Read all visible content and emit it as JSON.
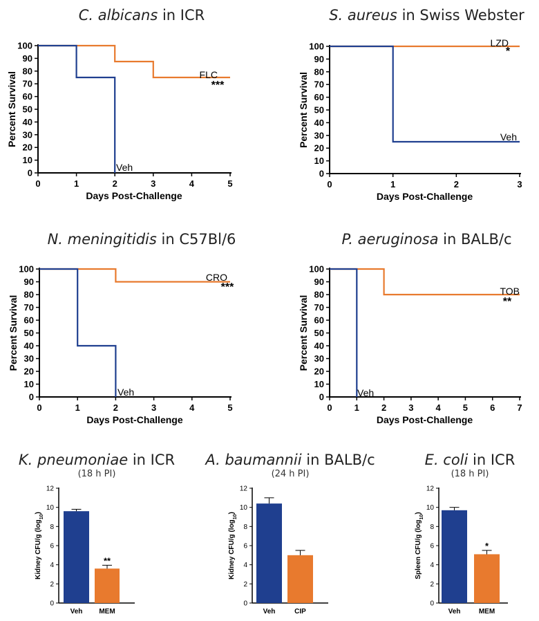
{
  "colors": {
    "veh": "#1f3f8f",
    "drug": "#e87a2e",
    "axis": "#000000"
  },
  "panels": [
    {
      "title_org": "C. albicans",
      "title_rest": "in ICR",
      "subtitle": ""
    },
    {
      "title_org": "S. aureus",
      "title_rest": "in Swiss Webster",
      "subtitle": ""
    },
    {
      "title_org": "N. meningitidis",
      "title_rest": "in C57Bl/6",
      "subtitle": ""
    },
    {
      "title_org": "P. aeruginosa",
      "title_rest": "in BALB/c",
      "subtitle": ""
    },
    {
      "title_org": "K. pneumoniae",
      "title_rest": "in ICR",
      "subtitle": "(18 h PI)"
    },
    {
      "title_org": "A. baumannii",
      "title_rest": "in BALB/c",
      "subtitle": "(24 h PI)"
    },
    {
      "title_org": "E. coli",
      "title_rest": "in ICR",
      "subtitle": "(18 h PI)"
    }
  ],
  "chart_data": [
    {
      "type": "line",
      "step": true,
      "xlabel": "Days Post-Challenge",
      "ylabel": "Percent Survival",
      "xlim": [
        0,
        5
      ],
      "ylim": [
        0,
        100
      ],
      "xticks": [
        "0",
        "1",
        "2",
        "3",
        "4",
        "5"
      ],
      "yticks": [
        "0",
        "10",
        "20",
        "30",
        "40",
        "50",
        "60",
        "70",
        "80",
        "90",
        "100"
      ],
      "series": [
        {
          "name": "Veh",
          "color_key": "veh",
          "points": [
            [
              0,
              100
            ],
            [
              1,
              100
            ],
            [
              1,
              75
            ],
            [
              2,
              75
            ],
            [
              2,
              0
            ]
          ]
        },
        {
          "name": "FLC",
          "significance": "***",
          "color_key": "drug",
          "points": [
            [
              0,
              100
            ],
            [
              2,
              100
            ],
            [
              2,
              87.5
            ],
            [
              3,
              87.5
            ],
            [
              3,
              75
            ],
            [
              5,
              75
            ]
          ]
        }
      ]
    },
    {
      "type": "line",
      "step": true,
      "xlabel": "Days Post-Challenge",
      "ylabel": "Percent Survival",
      "xlim": [
        0,
        3
      ],
      "ylim": [
        0,
        100
      ],
      "xticks": [
        "0",
        "1",
        "2",
        "3"
      ],
      "yticks": [
        "0",
        "10",
        "20",
        "30",
        "40",
        "50",
        "60",
        "70",
        "80",
        "90",
        "100"
      ],
      "series": [
        {
          "name": "LZD",
          "significance": "*",
          "color_key": "drug",
          "points": [
            [
              0,
              100
            ],
            [
              3,
              100
            ]
          ]
        },
        {
          "name": "Veh",
          "color_key": "veh",
          "points": [
            [
              0,
              100
            ],
            [
              1,
              100
            ],
            [
              1,
              25
            ],
            [
              3,
              25
            ]
          ]
        }
      ]
    },
    {
      "type": "line",
      "step": true,
      "xlabel": "Days Post-Challenge",
      "ylabel": "Percent Survival",
      "xlim": [
        0,
        5
      ],
      "ylim": [
        0,
        100
      ],
      "xticks": [
        "0",
        "1",
        "2",
        "3",
        "4",
        "5"
      ],
      "yticks": [
        "0",
        "10",
        "20",
        "30",
        "40",
        "50",
        "60",
        "70",
        "80",
        "90",
        "100"
      ],
      "series": [
        {
          "name": "Veh",
          "color_key": "veh",
          "points": [
            [
              0,
              100
            ],
            [
              1,
              100
            ],
            [
              1,
              40
            ],
            [
              2,
              40
            ],
            [
              2,
              0
            ]
          ]
        },
        {
          "name": "CRO",
          "significance": "***",
          "color_key": "drug",
          "points": [
            [
              0,
              100
            ],
            [
              2,
              100
            ],
            [
              2,
              90
            ],
            [
              5,
              90
            ]
          ]
        }
      ]
    },
    {
      "type": "line",
      "step": true,
      "xlabel": "Days Post-Challenge",
      "ylabel": "Percent Survival",
      "xlim": [
        0,
        7
      ],
      "ylim": [
        0,
        100
      ],
      "xticks": [
        "0",
        "1",
        "2",
        "3",
        "4",
        "5",
        "6",
        "7"
      ],
      "yticks": [
        "0",
        "10",
        "20",
        "30",
        "40",
        "50",
        "60",
        "70",
        "80",
        "90",
        "100"
      ],
      "series": [
        {
          "name": "Veh",
          "color_key": "veh",
          "points": [
            [
              0,
              100
            ],
            [
              1,
              100
            ],
            [
              1,
              0
            ]
          ]
        },
        {
          "name": "TOB",
          "significance": "**",
          "color_key": "drug",
          "points": [
            [
              0,
              100
            ],
            [
              2,
              100
            ],
            [
              2,
              80
            ],
            [
              7,
              80
            ]
          ]
        }
      ]
    },
    {
      "type": "bar",
      "ylabel": "Kidney CFU/g (log10)",
      "ylim": [
        0,
        12
      ],
      "yticks": [
        "0",
        "2",
        "4",
        "6",
        "8",
        "10",
        "12"
      ],
      "categories": [
        "Veh",
        "MEM"
      ],
      "values": [
        9.6,
        3.6
      ],
      "errors": [
        0.2,
        0.35
      ],
      "significance": [
        "",
        "**"
      ],
      "color_keys": [
        "veh",
        "drug"
      ]
    },
    {
      "type": "bar",
      "ylabel": "Kidney CFU/g (log10)",
      "ylim": [
        0,
        12
      ],
      "yticks": [
        "0",
        "2",
        "4",
        "6",
        "8",
        "10",
        "12"
      ],
      "categories": [
        "Veh",
        "CIP"
      ],
      "values": [
        10.4,
        5.0
      ],
      "errors": [
        0.6,
        0.5
      ],
      "significance": [
        "",
        ""
      ],
      "color_keys": [
        "veh",
        "drug"
      ]
    },
    {
      "type": "bar",
      "ylabel": "Spleen CFU/g (log10)",
      "ylim": [
        0,
        12
      ],
      "yticks": [
        "0",
        "2",
        "4",
        "6",
        "8",
        "10",
        "12"
      ],
      "categories": [
        "Veh",
        "MEM"
      ],
      "values": [
        9.7,
        5.1
      ],
      "errors": [
        0.3,
        0.4
      ],
      "significance": [
        "",
        "*"
      ],
      "color_keys": [
        "veh",
        "drug"
      ]
    }
  ]
}
